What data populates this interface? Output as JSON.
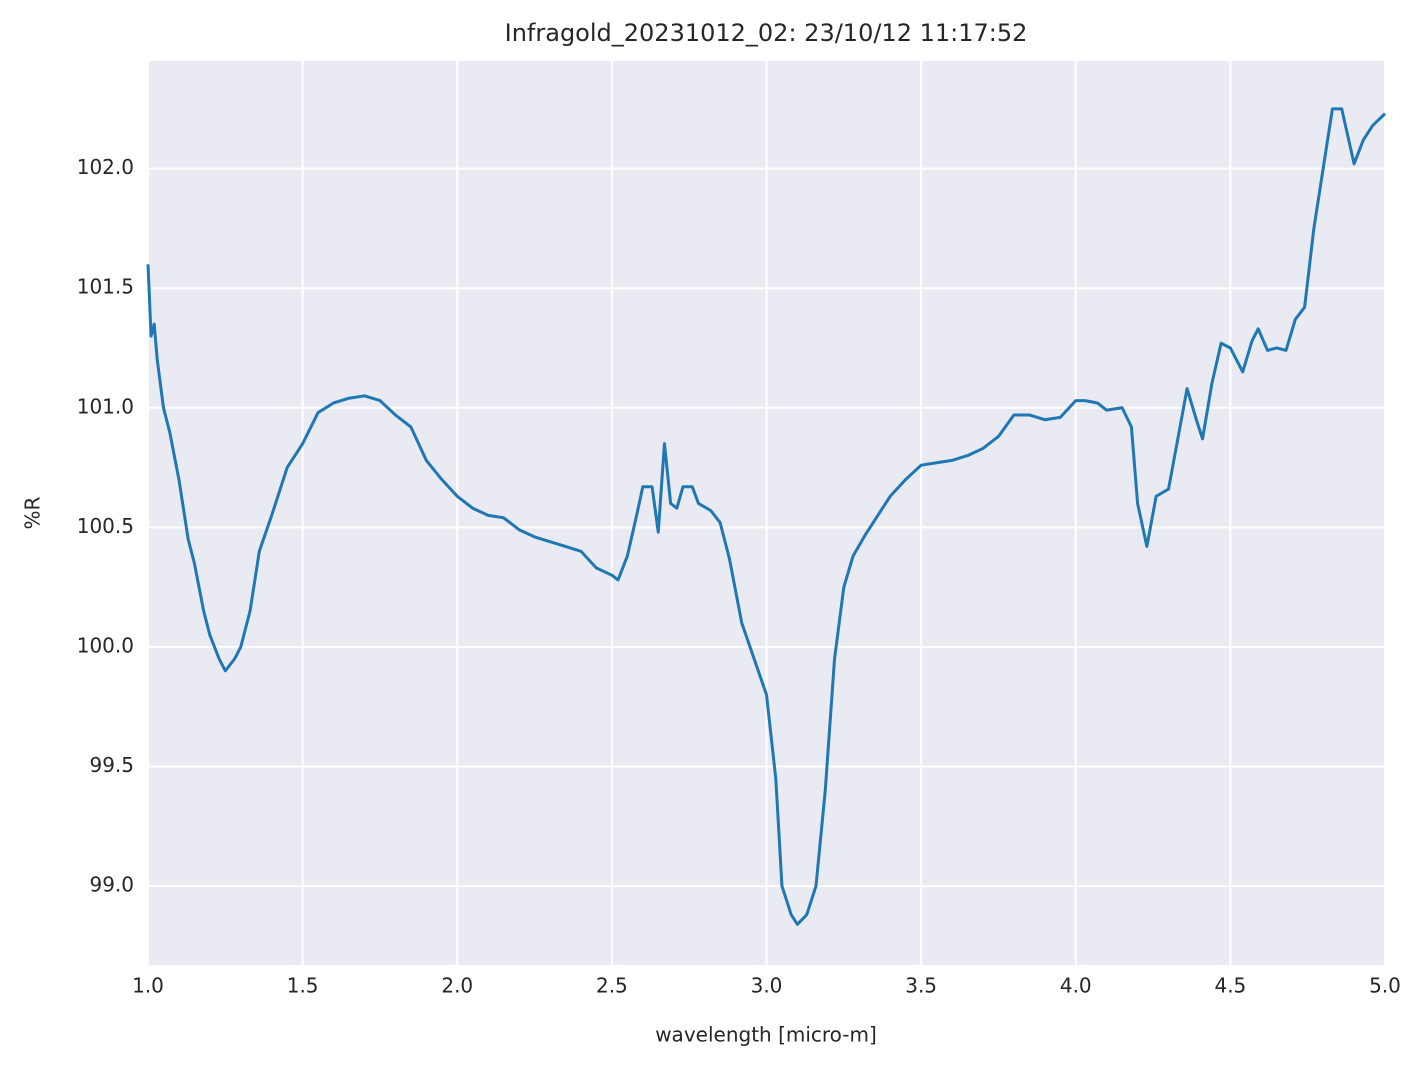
{
  "chart_data": {
    "type": "line",
    "title": "Infragold_20231012_02:  23/10/12 11:17:52",
    "x_label": "wavelength [micro-m]",
    "y_label": "%R",
    "x": [
      1.0,
      1.01,
      1.02,
      1.03,
      1.05,
      1.07,
      1.1,
      1.13,
      1.15,
      1.18,
      1.2,
      1.23,
      1.25,
      1.28,
      1.3,
      1.33,
      1.36,
      1.4,
      1.45,
      1.5,
      1.55,
      1.6,
      1.65,
      1.7,
      1.75,
      1.8,
      1.85,
      1.9,
      1.95,
      2.0,
      2.05,
      2.1,
      2.15,
      2.2,
      2.25,
      2.3,
      2.35,
      2.4,
      2.45,
      2.5,
      2.52,
      2.55,
      2.58,
      2.6,
      2.63,
      2.65,
      2.67,
      2.69,
      2.71,
      2.73,
      2.76,
      2.78,
      2.82,
      2.85,
      2.88,
      2.92,
      2.96,
      3.0,
      3.03,
      3.05,
      3.08,
      3.1,
      3.13,
      3.16,
      3.19,
      3.22,
      3.25,
      3.28,
      3.32,
      3.36,
      3.4,
      3.45,
      3.5,
      3.55,
      3.6,
      3.65,
      3.7,
      3.75,
      3.8,
      3.85,
      3.9,
      3.95,
      4.0,
      4.03,
      4.07,
      4.1,
      4.15,
      4.18,
      4.2,
      4.23,
      4.26,
      4.3,
      4.33,
      4.36,
      4.39,
      4.41,
      4.44,
      4.47,
      4.5,
      4.54,
      4.57,
      4.59,
      4.62,
      4.65,
      4.68,
      4.71,
      4.74,
      4.77,
      4.8,
      4.83,
      4.86,
      4.9,
      4.93,
      4.96,
      5.0
    ],
    "series": [
      {
        "name": "%R",
        "color": "#1f77b4",
        "values": [
          101.6,
          101.3,
          101.35,
          101.2,
          101.0,
          100.9,
          100.7,
          100.45,
          100.35,
          100.15,
          100.05,
          99.95,
          99.9,
          99.95,
          100.0,
          100.15,
          100.4,
          100.55,
          100.75,
          100.85,
          100.98,
          101.02,
          101.04,
          101.05,
          101.03,
          100.97,
          100.92,
          100.78,
          100.7,
          100.63,
          100.58,
          100.55,
          100.54,
          100.49,
          100.46,
          100.44,
          100.42,
          100.4,
          100.33,
          100.3,
          100.28,
          100.38,
          100.55,
          100.67,
          100.67,
          100.48,
          100.85,
          100.6,
          100.58,
          100.67,
          100.67,
          100.6,
          100.57,
          100.52,
          100.37,
          100.1,
          99.95,
          99.8,
          99.45,
          99.0,
          98.88,
          98.84,
          98.88,
          99.0,
          99.4,
          99.95,
          100.25,
          100.38,
          100.47,
          100.55,
          100.63,
          100.7,
          100.76,
          100.77,
          100.78,
          100.8,
          100.83,
          100.88,
          100.97,
          100.97,
          100.95,
          100.96,
          101.03,
          101.03,
          101.02,
          100.99,
          101.0,
          100.92,
          100.6,
          100.42,
          100.63,
          100.66,
          100.87,
          101.08,
          100.95,
          100.87,
          101.1,
          101.27,
          101.25,
          101.15,
          101.28,
          101.33,
          101.24,
          101.25,
          101.24,
          101.37,
          101.42,
          101.75,
          102.0,
          102.25,
          102.25,
          102.02,
          102.12,
          102.18,
          102.23
        ]
      }
    ],
    "xlim": [
      1,
      5
    ],
    "ylim": [
      98.67,
      102.45
    ],
    "xticks": [
      {
        "value": 1,
        "label": "1.0"
      },
      1.5,
      {
        "value": 2,
        "label": "2.0"
      },
      2.5,
      {
        "value": 3,
        "label": "3.0"
      },
      3.5,
      {
        "value": 4,
        "label": "4.0"
      },
      4.5,
      {
        "value": 5,
        "label": "5.0"
      }
    ],
    "yticks": [
      {
        "value": 99,
        "label": "99.0"
      },
      99.5,
      {
        "value": 100,
        "label": "100.0"
      },
      100.5,
      {
        "value": 101,
        "label": "101.0"
      },
      101.5,
      {
        "value": 102,
        "label": "102.0"
      }
    ],
    "grid": true
  }
}
